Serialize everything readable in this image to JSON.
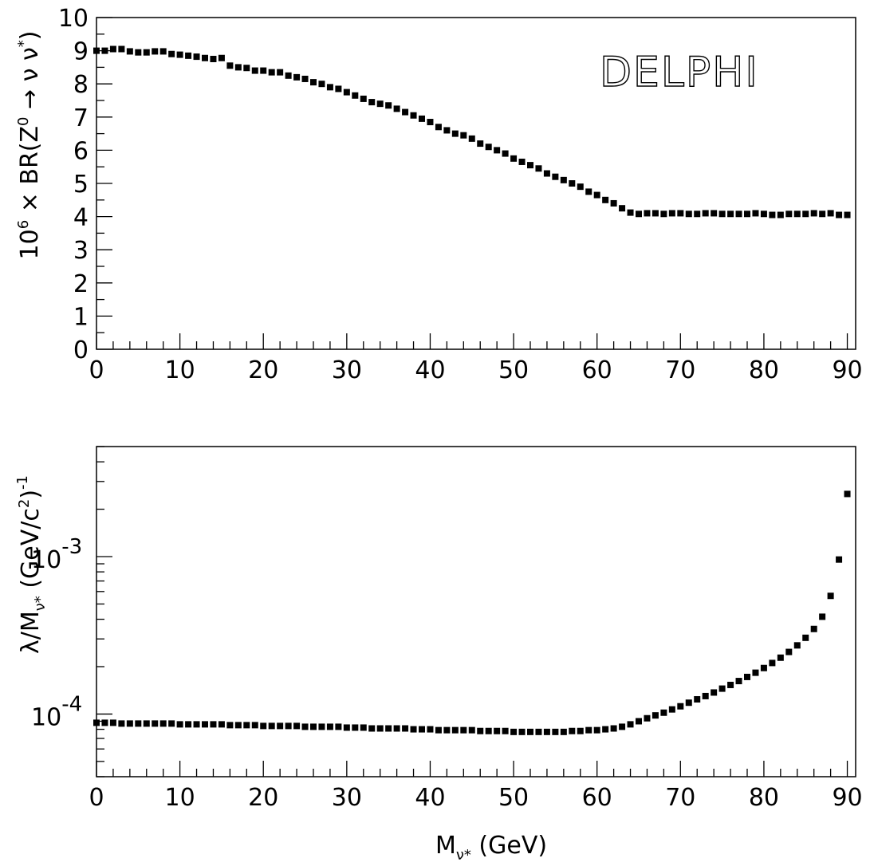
{
  "chart_data": [
    {
      "type": "scatter",
      "title": "",
      "annotation": "DELPHI",
      "ylabel_prefix": "10",
      "ylabel_exp": "6",
      "ylabel_main": " × BR(Z",
      "ylabel_z_sup": "0",
      "ylabel_arrow": " → ν ν",
      "ylabel_star": "*",
      "ylabel_close": ")",
      "xlabel": "",
      "xlim": [
        0,
        91
      ],
      "ylim": [
        0,
        10
      ],
      "yscale": "linear",
      "xticks": [
        0,
        10,
        20,
        30,
        40,
        50,
        60,
        70,
        80,
        90
      ],
      "xtick_labels": [
        "0",
        "10",
        "20",
        "30",
        "40",
        "50",
        "60",
        "70",
        "80",
        "90"
      ],
      "yticks": [
        0,
        1,
        2,
        3,
        4,
        5,
        6,
        7,
        8,
        9,
        10
      ],
      "ytick_labels": [
        "0",
        "1",
        "2",
        "3",
        "4",
        "5",
        "6",
        "7",
        "8",
        "9",
        "10"
      ],
      "grid": false,
      "marker": "square",
      "x": [
        0,
        1,
        2,
        3,
        4,
        5,
        6,
        7,
        8,
        9,
        10,
        11,
        12,
        13,
        14,
        15,
        16,
        17,
        18,
        19,
        20,
        21,
        22,
        23,
        24,
        25,
        26,
        27,
        28,
        29,
        30,
        31,
        32,
        33,
        34,
        35,
        36,
        37,
        38,
        39,
        40,
        41,
        42,
        43,
        44,
        45,
        46,
        47,
        48,
        49,
        50,
        51,
        52,
        53,
        54,
        55,
        56,
        57,
        58,
        59,
        60,
        61,
        62,
        63,
        64,
        65,
        66,
        67,
        68,
        69,
        70,
        71,
        72,
        73,
        74,
        75,
        76,
        77,
        78,
        79,
        80,
        81,
        82,
        83,
        84,
        85,
        86,
        87,
        88,
        89,
        90
      ],
      "y": [
        9.0,
        9.0,
        9.05,
        9.05,
        8.98,
        8.95,
        8.95,
        8.98,
        8.98,
        8.9,
        8.88,
        8.85,
        8.82,
        8.78,
        8.75,
        8.78,
        8.55,
        8.5,
        8.48,
        8.4,
        8.4,
        8.35,
        8.35,
        8.25,
        8.2,
        8.15,
        8.05,
        8.0,
        7.9,
        7.85,
        7.75,
        7.65,
        7.55,
        7.45,
        7.4,
        7.35,
        7.25,
        7.15,
        7.05,
        6.95,
        6.85,
        6.7,
        6.6,
        6.5,
        6.45,
        6.35,
        6.2,
        6.1,
        6.0,
        5.9,
        5.75,
        5.65,
        5.55,
        5.45,
        5.3,
        5.2,
        5.1,
        5.0,
        4.9,
        4.75,
        4.65,
        4.5,
        4.4,
        4.25,
        4.12,
        4.08,
        4.1,
        4.1,
        4.08,
        4.1,
        4.1,
        4.08,
        4.08,
        4.1,
        4.1,
        4.08,
        4.08,
        4.08,
        4.08,
        4.1,
        4.08,
        4.05,
        4.05,
        4.08,
        4.08,
        4.08,
        4.1,
        4.08,
        4.1,
        4.05,
        4.05
      ]
    },
    {
      "type": "scatter",
      "title": "",
      "ylabel_main": "λ/M",
      "ylabel_sub": "ν*",
      "ylabel_unit": " (GeV/c",
      "ylabel_unit_sup": "2",
      "ylabel_unit_close": ")",
      "ylabel_exp": "-1",
      "xlabel_main": "M",
      "xlabel_sub": "ν*",
      "xlabel_unit": " (GeV)",
      "xlim": [
        0,
        91
      ],
      "ylim": [
        4e-05,
        0.005
      ],
      "yscale": "log",
      "xticks": [
        0,
        10,
        20,
        30,
        40,
        50,
        60,
        70,
        80,
        90
      ],
      "xtick_labels": [
        "0",
        "10",
        "20",
        "30",
        "40",
        "50",
        "60",
        "70",
        "80",
        "90"
      ],
      "yticks": [
        0.0001,
        0.001
      ],
      "ytick_base": "10",
      "ytick_exps": [
        "-4",
        "-3"
      ],
      "grid": false,
      "marker": "square",
      "x": [
        0,
        1,
        2,
        3,
        4,
        5,
        6,
        7,
        8,
        9,
        10,
        11,
        12,
        13,
        14,
        15,
        16,
        17,
        18,
        19,
        20,
        21,
        22,
        23,
        24,
        25,
        26,
        27,
        28,
        29,
        30,
        31,
        32,
        33,
        34,
        35,
        36,
        37,
        38,
        39,
        40,
        41,
        42,
        43,
        44,
        45,
        46,
        47,
        48,
        49,
        50,
        51,
        52,
        53,
        54,
        55,
        56,
        57,
        58,
        59,
        60,
        61,
        62,
        63,
        64,
        65,
        66,
        67,
        68,
        69,
        70,
        71,
        72,
        73,
        74,
        75,
        76,
        77,
        78,
        79,
        80,
        81,
        82,
        83,
        84,
        85,
        86,
        87,
        88,
        89,
        90
      ],
      "y": [
        8.8e-05,
        8.8e-05,
        8.8e-05,
        8.7e-05,
        8.7e-05,
        8.7e-05,
        8.7e-05,
        8.7e-05,
        8.7e-05,
        8.7e-05,
        8.6e-05,
        8.6e-05,
        8.6e-05,
        8.6e-05,
        8.6e-05,
        8.6e-05,
        8.5e-05,
        8.5e-05,
        8.5e-05,
        8.5e-05,
        8.4e-05,
        8.4e-05,
        8.4e-05,
        8.4e-05,
        8.4e-05,
        8.3e-05,
        8.3e-05,
        8.3e-05,
        8.3e-05,
        8.3e-05,
        8.2e-05,
        8.2e-05,
        8.2e-05,
        8.1e-05,
        8.1e-05,
        8.1e-05,
        8.1e-05,
        8.1e-05,
        8e-05,
        8e-05,
        8e-05,
        7.9e-05,
        7.9e-05,
        7.9e-05,
        7.9e-05,
        7.9e-05,
        7.8e-05,
        7.8e-05,
        7.8e-05,
        7.8e-05,
        7.7e-05,
        7.7e-05,
        7.7e-05,
        7.7e-05,
        7.7e-05,
        7.7e-05,
        7.7e-05,
        7.8e-05,
        7.8e-05,
        7.9e-05,
        7.9e-05,
        8e-05,
        8.1e-05,
        8.3e-05,
        8.6e-05,
        9e-05,
        9.4e-05,
        9.8e-05,
        0.000102,
        0.000107,
        0.000112,
        0.000118,
        0.000124,
        0.00013,
        0.000137,
        0.000145,
        0.000153,
        0.000162,
        0.000172,
        0.000183,
        0.000196,
        0.000211,
        0.000228,
        0.000248,
        0.000273,
        0.000305,
        0.000347,
        0.000415,
        0.000563,
        0.000958,
        0.0025
      ]
    }
  ]
}
